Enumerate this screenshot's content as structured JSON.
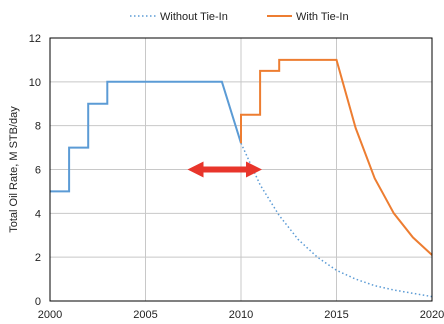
{
  "chart_data": {
    "type": "line",
    "title": "",
    "xlabel": "",
    "ylabel": "Total Oil Rate, M STB/day",
    "xlim": [
      2000,
      2020
    ],
    "ylim": [
      0,
      12
    ],
    "x_ticks": [
      2000,
      2005,
      2010,
      2015,
      2020
    ],
    "y_ticks": [
      0,
      2,
      4,
      6,
      8,
      10,
      12
    ],
    "grid": true,
    "legend_position": "top",
    "series": [
      {
        "name": "Without Tie-In",
        "color": "#5b9bd5",
        "style": "solid-then-dotted",
        "solid_points": [
          [
            2000,
            5
          ],
          [
            2001,
            5
          ],
          [
            2001,
            7
          ],
          [
            2002,
            7
          ],
          [
            2002,
            9
          ],
          [
            2003,
            9
          ],
          [
            2003,
            10
          ],
          [
            2009,
            10
          ],
          [
            2010,
            7.2
          ]
        ],
        "dotted_points": [
          [
            2010,
            7.2
          ],
          [
            2011,
            5.3
          ],
          [
            2012,
            3.9
          ],
          [
            2013,
            2.8
          ],
          [
            2014,
            2.0
          ],
          [
            2015,
            1.4
          ],
          [
            2016,
            1.0
          ],
          [
            2017,
            0.7
          ],
          [
            2018,
            0.5
          ],
          [
            2019,
            0.35
          ],
          [
            2020,
            0.2
          ]
        ]
      },
      {
        "name": "With Tie-In",
        "color": "#ed7d31",
        "style": "solid",
        "points": [
          [
            2010,
            7.2
          ],
          [
            2010,
            8.5
          ],
          [
            2011,
            8.5
          ],
          [
            2011,
            10.5
          ],
          [
            2012,
            10.5
          ],
          [
            2012,
            11
          ],
          [
            2015,
            11
          ],
          [
            2016,
            7.9
          ],
          [
            2017,
            5.6
          ],
          [
            2018,
            4.0
          ],
          [
            2019,
            2.9
          ],
          [
            2020,
            2.1
          ]
        ]
      }
    ],
    "annotations": [
      {
        "type": "double-arrow",
        "color": "#e8352b",
        "x_from": 2007.2,
        "x_to": 2011.1,
        "y": 6.0
      }
    ]
  }
}
